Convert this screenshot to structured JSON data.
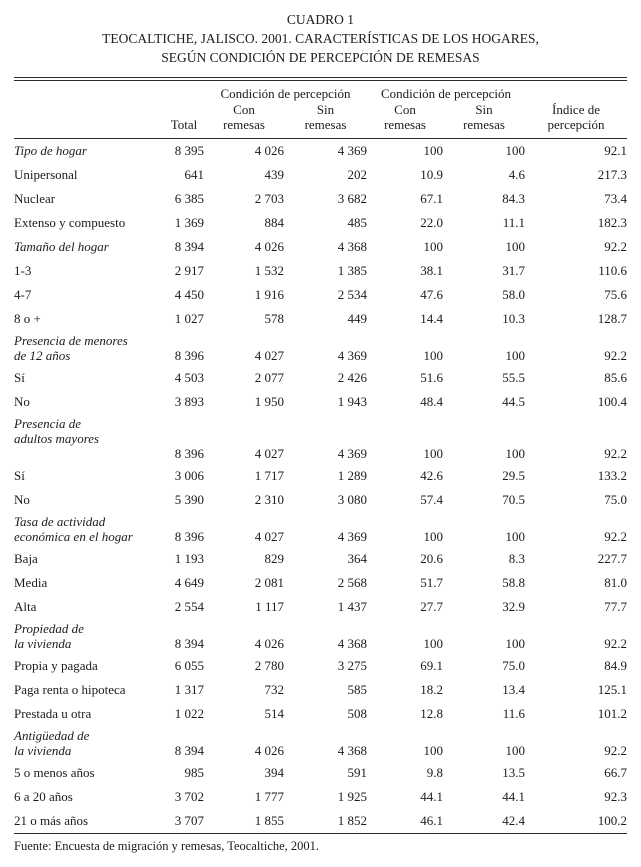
{
  "title": {
    "caption": "CUADRO 1",
    "line1": "TEOCALTICHE, JALISCO. 2001. CARACTERÍSTICAS DE LOS HOGARES,",
    "line2": "SEGÚN CONDICIÓN DE PERCEPCIÓN DE REMESAS"
  },
  "table": {
    "group_headers": [
      "Condición de percepción",
      "Condición de percepción"
    ],
    "column_headers": [
      "Total",
      "Con\nremesas",
      "Sin\nremesas",
      "Con\nremesas",
      "Sin\nremesas",
      "Índice de\npercepción"
    ],
    "rows": [
      {
        "label": "Tipo de hogar",
        "italic": true,
        "values": [
          "8 395",
          "4 026",
          "4 369",
          "100",
          "100",
          "92.1"
        ]
      },
      {
        "label": "Unipersonal",
        "italic": false,
        "values": [
          "641",
          "439",
          "202",
          "10.9",
          "4.6",
          "217.3"
        ]
      },
      {
        "label": "Nuclear",
        "italic": false,
        "values": [
          "6 385",
          "2 703",
          "3 682",
          "67.1",
          "84.3",
          "73.4"
        ]
      },
      {
        "label": "Extenso y compuesto",
        "italic": false,
        "values": [
          "1 369",
          "884",
          "485",
          "22.0",
          "11.1",
          "182.3"
        ]
      },
      {
        "label": "Tamaño del hogar",
        "italic": true,
        "values": [
          "8 394",
          "4 026",
          "4 368",
          "100",
          "100",
          "92.2"
        ]
      },
      {
        "label": "1-3",
        "italic": false,
        "values": [
          "2 917",
          "1 532",
          "1 385",
          "38.1",
          "31.7",
          "110.6"
        ]
      },
      {
        "label": "4-7",
        "italic": false,
        "values": [
          "4 450",
          "1 916",
          "2 534",
          "47.6",
          "58.0",
          "75.6"
        ]
      },
      {
        "label": "8 o +",
        "italic": false,
        "values": [
          "1 027",
          "578",
          "449",
          "14.4",
          "10.3",
          "128.7"
        ]
      },
      {
        "label": "Presencia de menores\nde 12 años",
        "italic": true,
        "values": [
          "8 396",
          "4 027",
          "4 369",
          "100",
          "100",
          "92.2"
        ]
      },
      {
        "label": "Sí",
        "italic": false,
        "values": [
          "4 503",
          "2 077",
          "2 426",
          "51.6",
          "55.5",
          "85.6"
        ]
      },
      {
        "label": "No",
        "italic": false,
        "values": [
          "3 893",
          "1 950",
          "1 943",
          "48.4",
          "44.5",
          "100.4"
        ]
      },
      {
        "label": "Presencia de\nadultos mayores\n ",
        "italic": true,
        "values": [
          "8 396",
          "4 027",
          "4 369",
          "100",
          "100",
          "92.2"
        ]
      },
      {
        "label": "Sí",
        "italic": false,
        "values": [
          "3 006",
          "1 717",
          "1 289",
          "42.6",
          "29.5",
          "133.2"
        ]
      },
      {
        "label": "No",
        "italic": false,
        "values": [
          "5 390",
          "2 310",
          "3 080",
          "57.4",
          "70.5",
          "75.0"
        ]
      },
      {
        "label": "Tasa de actividad\neconómica en el hogar",
        "italic": true,
        "values": [
          "8 396",
          "4 027",
          "4 369",
          "100",
          "100",
          "92.2"
        ]
      },
      {
        "label": "Baja",
        "italic": false,
        "values": [
          "1 193",
          "829",
          "364",
          "20.6",
          "8.3",
          "227.7"
        ]
      },
      {
        "label": "Media",
        "italic": false,
        "values": [
          "4 649",
          "2 081",
          "2 568",
          "51.7",
          "58.8",
          "81.0"
        ]
      },
      {
        "label": "Alta",
        "italic": false,
        "values": [
          "2 554",
          "1 117",
          "1 437",
          "27.7",
          "32.9",
          "77.7"
        ]
      },
      {
        "label": "Propiedad de\nla vivienda",
        "italic": true,
        "values": [
          "8 394",
          "4 026",
          "4 368",
          "100",
          "100",
          "92.2"
        ]
      },
      {
        "label": "Propia y pagada",
        "italic": false,
        "values": [
          "6 055",
          "2 780",
          "3 275",
          "69.1",
          "75.0",
          "84.9"
        ]
      },
      {
        "label": "Paga renta o hipoteca",
        "italic": false,
        "values": [
          "1 317",
          "732",
          "585",
          "18.2",
          "13.4",
          "125.1"
        ]
      },
      {
        "label": "Prestada u otra",
        "italic": false,
        "values": [
          "1 022",
          "514",
          "508",
          "12.8",
          "11.6",
          "101.2"
        ]
      },
      {
        "label": "Antigüedad de\nla vivienda",
        "italic": true,
        "values": [
          "8 394",
          "4 026",
          "4 368",
          "100",
          "100",
          "92.2"
        ]
      },
      {
        "label": "5 o menos años",
        "italic": false,
        "values": [
          "985",
          "394",
          "591",
          "9.8",
          "13.5",
          "66.7"
        ]
      },
      {
        "label": "6 a 20 años",
        "italic": false,
        "values": [
          "3 702",
          "1 777",
          "1 925",
          "44.1",
          "44.1",
          "92.3"
        ]
      },
      {
        "label": "21 o más años",
        "italic": false,
        "values": [
          "3 707",
          "1 855",
          "1 852",
          "46.1",
          "42.4",
          "100.2"
        ]
      }
    ]
  },
  "source": "Fuente: Encuesta de migración y remesas, Teocaltiche, 2001."
}
